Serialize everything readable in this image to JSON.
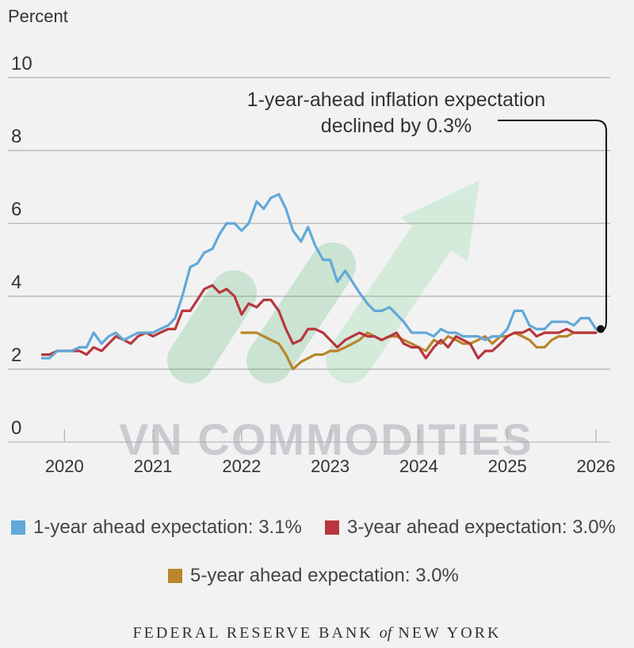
{
  "chart_data": {
    "type": "line",
    "y_unit_label": "Percent",
    "ylim": [
      0,
      10
    ],
    "yticks": [
      0,
      2,
      4,
      6,
      8,
      10
    ],
    "xlim": [
      2019.72,
      2026.0
    ],
    "xtick_labels": [
      "2020",
      "2021",
      "2022",
      "2023",
      "2024",
      "2025",
      "2026"
    ],
    "grid": "horizontal",
    "annotation": {
      "lines": [
        "1-year-ahead inflation expectation",
        "declined by 0.3%"
      ]
    },
    "series": [
      {
        "name": "1-year ahead expectation: 3.1%",
        "color": "#62a8d8",
        "x": [
          2019.75,
          2019.83,
          2019.92,
          2020.0,
          2020.08,
          2020.17,
          2020.25,
          2020.33,
          2020.42,
          2020.5,
          2020.58,
          2020.67,
          2020.75,
          2020.83,
          2020.92,
          2021.0,
          2021.08,
          2021.17,
          2021.25,
          2021.33,
          2021.42,
          2021.5,
          2021.58,
          2021.67,
          2021.75,
          2021.83,
          2021.92,
          2022.0,
          2022.08,
          2022.17,
          2022.25,
          2022.33,
          2022.42,
          2022.5,
          2022.58,
          2022.67,
          2022.75,
          2022.83,
          2022.92,
          2023.0,
          2023.08,
          2023.17,
          2023.25,
          2023.33,
          2023.42,
          2023.5,
          2023.58,
          2023.67,
          2023.75,
          2023.83,
          2023.92,
          2024.0,
          2024.08,
          2024.17,
          2024.25,
          2024.33,
          2024.42,
          2024.5,
          2024.58,
          2024.67,
          2024.75,
          2024.83,
          2024.92,
          2025.0,
          2025.08,
          2025.17,
          2025.25,
          2025.33,
          2025.42,
          2025.5,
          2025.58,
          2025.67,
          2025.75,
          2025.83,
          2025.92,
          2026.0
        ],
        "y": [
          2.3,
          2.3,
          2.5,
          2.5,
          2.5,
          2.6,
          2.6,
          3.0,
          2.7,
          2.9,
          3.0,
          2.8,
          2.9,
          3.0,
          3.0,
          3.0,
          3.1,
          3.2,
          3.4,
          4.0,
          4.8,
          4.9,
          5.2,
          5.3,
          5.7,
          6.0,
          6.0,
          5.8,
          6.0,
          6.6,
          6.4,
          6.7,
          6.8,
          6.4,
          5.8,
          5.5,
          5.9,
          5.4,
          5.0,
          5.0,
          4.4,
          4.7,
          4.4,
          4.1,
          3.8,
          3.6,
          3.6,
          3.7,
          3.5,
          3.3,
          3.0,
          3.0,
          3.0,
          2.9,
          3.1,
          3.0,
          3.0,
          2.9,
          2.9,
          2.9,
          2.8,
          2.9,
          2.9,
          3.1,
          3.6,
          3.6,
          3.2,
          3.1,
          3.1,
          3.3,
          3.3,
          3.3,
          3.2,
          3.4,
          3.4,
          3.1
        ]
      },
      {
        "name": "3-year ahead expectation: 3.0%",
        "color": "#b8373e",
        "x": [
          2019.75,
          2019.83,
          2019.92,
          2020.0,
          2020.08,
          2020.17,
          2020.25,
          2020.33,
          2020.42,
          2020.5,
          2020.58,
          2020.67,
          2020.75,
          2020.83,
          2020.92,
          2021.0,
          2021.08,
          2021.17,
          2021.25,
          2021.33,
          2021.42,
          2021.5,
          2021.58,
          2021.67,
          2021.75,
          2021.83,
          2021.92,
          2022.0,
          2022.08,
          2022.17,
          2022.25,
          2022.33,
          2022.42,
          2022.5,
          2022.58,
          2022.67,
          2022.75,
          2022.83,
          2022.92,
          2023.0,
          2023.08,
          2023.17,
          2023.25,
          2023.33,
          2023.42,
          2023.5,
          2023.58,
          2023.67,
          2023.75,
          2023.83,
          2023.92,
          2024.0,
          2024.08,
          2024.17,
          2024.25,
          2024.33,
          2024.42,
          2024.5,
          2024.58,
          2024.67,
          2024.75,
          2024.83,
          2024.92,
          2025.0,
          2025.08,
          2025.17,
          2025.25,
          2025.33,
          2025.42,
          2025.5,
          2025.58,
          2025.67,
          2025.75,
          2025.83,
          2025.92,
          2026.0
        ],
        "y": [
          2.4,
          2.4,
          2.5,
          2.5,
          2.5,
          2.5,
          2.4,
          2.6,
          2.5,
          2.7,
          2.9,
          2.8,
          2.7,
          2.9,
          3.0,
          2.9,
          3.0,
          3.1,
          3.1,
          3.6,
          3.6,
          3.9,
          4.2,
          4.3,
          4.1,
          4.2,
          4.0,
          3.5,
          3.8,
          3.7,
          3.9,
          3.9,
          3.6,
          3.1,
          2.7,
          2.8,
          3.1,
          3.1,
          3.0,
          2.8,
          2.6,
          2.8,
          2.9,
          3.0,
          2.9,
          2.9,
          2.8,
          2.9,
          3.0,
          2.7,
          2.6,
          2.6,
          2.3,
          2.6,
          2.8,
          2.6,
          2.9,
          2.8,
          2.7,
          2.3,
          2.5,
          2.5,
          2.7,
          2.9,
          3.0,
          3.0,
          3.1,
          2.9,
          3.0,
          3.0,
          3.0,
          3.1,
          3.0,
          3.0,
          3.0,
          3.0
        ]
      },
      {
        "name": "5-year ahead expectation: 3.0%",
        "color": "#b8862b",
        "x": [
          2022.0,
          2022.08,
          2022.17,
          2022.25,
          2022.33,
          2022.42,
          2022.5,
          2022.58,
          2022.67,
          2022.75,
          2022.83,
          2022.92,
          2023.0,
          2023.08,
          2023.17,
          2023.25,
          2023.33,
          2023.42,
          2023.5,
          2023.58,
          2023.67,
          2023.75,
          2023.83,
          2023.92,
          2024.0,
          2024.08,
          2024.17,
          2024.25,
          2024.33,
          2024.42,
          2024.5,
          2024.58,
          2024.67,
          2024.75,
          2024.83,
          2024.92,
          2025.0,
          2025.08,
          2025.17,
          2025.25,
          2025.33,
          2025.42,
          2025.5,
          2025.58,
          2025.67,
          2025.75,
          2025.83,
          2025.92,
          2026.0
        ],
        "y": [
          3.0,
          3.0,
          3.0,
          2.9,
          2.8,
          2.7,
          2.4,
          2.0,
          2.2,
          2.3,
          2.4,
          2.4,
          2.5,
          2.5,
          2.6,
          2.7,
          2.8,
          3.0,
          2.9,
          2.8,
          2.9,
          2.9,
          2.8,
          2.7,
          2.6,
          2.5,
          2.8,
          2.7,
          2.9,
          2.8,
          2.7,
          2.7,
          2.8,
          2.9,
          2.7,
          2.9,
          2.9,
          3.0,
          2.9,
          2.8,
          2.6,
          2.6,
          2.8,
          2.9,
          2.9,
          3.0,
          3.0,
          3.0,
          3.0
        ]
      }
    ]
  },
  "watermark_text": "VN COMMODITIES",
  "footer": {
    "left": "FEDERAL RESERVE BANK",
    "of": "of",
    "right": "NEW YORK"
  }
}
